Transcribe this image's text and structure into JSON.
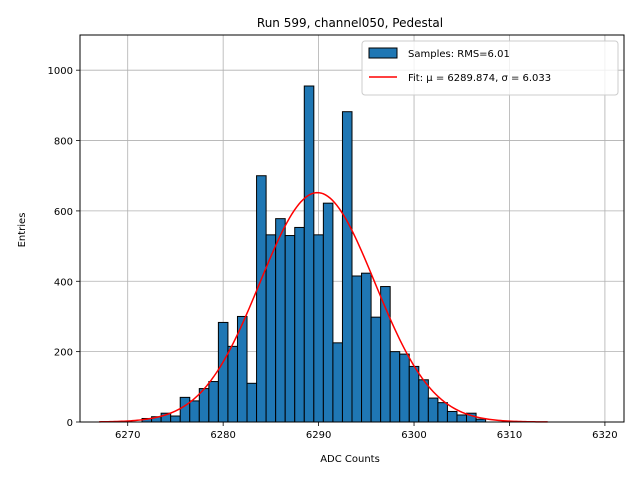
{
  "chart_data": {
    "type": "bar",
    "title": "Run 599, channel050, Pedestal",
    "xlabel": "ADC Counts",
    "ylabel": "Entries",
    "xlim": [
      6265,
      6322
    ],
    "ylim": [
      0,
      1100
    ],
    "xticks": [
      6270,
      6280,
      6290,
      6300,
      6310,
      6320
    ],
    "yticks": [
      0,
      200,
      400,
      600,
      800,
      1000
    ],
    "grid": true,
    "legend_position": "top-right",
    "bin_width": 1,
    "series": [
      {
        "name": "Samples: RMS=6.01",
        "kind": "histogram",
        "color": "#1f77b4",
        "edge_color": "#000000",
        "bins": [
          {
            "x": 6272,
            "y": 10
          },
          {
            "x": 6273,
            "y": 15
          },
          {
            "x": 6274,
            "y": 25
          },
          {
            "x": 6275,
            "y": 17
          },
          {
            "x": 6276,
            "y": 70
          },
          {
            "x": 6277,
            "y": 60
          },
          {
            "x": 6278,
            "y": 95
          },
          {
            "x": 6279,
            "y": 115
          },
          {
            "x": 6280,
            "y": 283
          },
          {
            "x": 6281,
            "y": 215
          },
          {
            "x": 6282,
            "y": 300
          },
          {
            "x": 6283,
            "y": 110
          },
          {
            "x": 6284,
            "y": 700
          },
          {
            "x": 6285,
            "y": 532
          },
          {
            "x": 6286,
            "y": 578
          },
          {
            "x": 6287,
            "y": 530
          },
          {
            "x": 6288,
            "y": 553
          },
          {
            "x": 6289,
            "y": 955
          },
          {
            "x": 6290,
            "y": 532
          },
          {
            "x": 6291,
            "y": 622
          },
          {
            "x": 6292,
            "y": 225
          },
          {
            "x": 6293,
            "y": 882
          },
          {
            "x": 6294,
            "y": 415
          },
          {
            "x": 6295,
            "y": 423
          },
          {
            "x": 6296,
            "y": 298
          },
          {
            "x": 6297,
            "y": 385
          },
          {
            "x": 6298,
            "y": 200
          },
          {
            "x": 6299,
            "y": 193
          },
          {
            "x": 6300,
            "y": 158
          },
          {
            "x": 6301,
            "y": 120
          },
          {
            "x": 6302,
            "y": 68
          },
          {
            "x": 6303,
            "y": 55
          },
          {
            "x": 6304,
            "y": 30
          },
          {
            "x": 6305,
            "y": 20
          },
          {
            "x": 6306,
            "y": 25
          },
          {
            "x": 6307,
            "y": 8
          }
        ]
      },
      {
        "name": "Fit: μ = 6289.874, σ = 6.033",
        "kind": "gaussian-fit",
        "color": "#ff0000",
        "mu": 6289.874,
        "sigma": 6.033,
        "amplitude": 652,
        "x_range": [
          6267,
          6314
        ]
      }
    ]
  }
}
